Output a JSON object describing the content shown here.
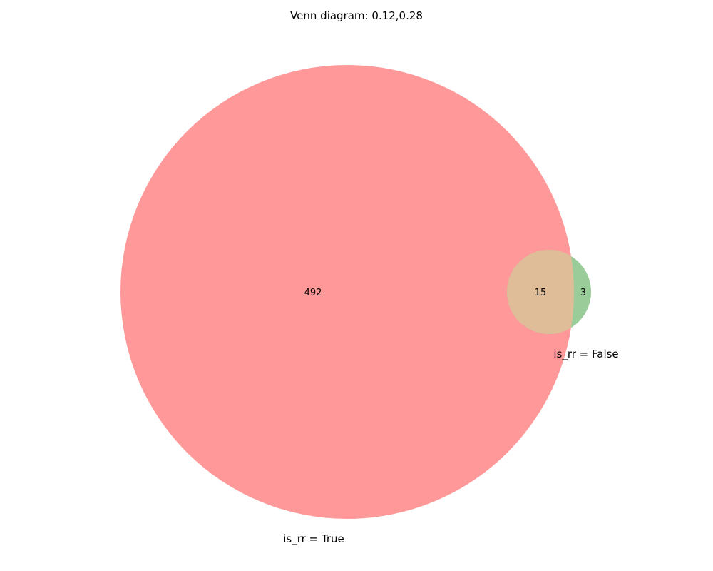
{
  "title": "Venn diagram: 0.12,0.28",
  "colors": {
    "set_a": "#ff9999",
    "set_b": "#99cc99",
    "overlap": "#e0bd99"
  },
  "sets": [
    {
      "label": "is_rr = True"
    },
    {
      "label": "is_rr = False"
    }
  ],
  "regions": {
    "a_only": "492",
    "overlap": "15",
    "b_only": "3"
  }
}
